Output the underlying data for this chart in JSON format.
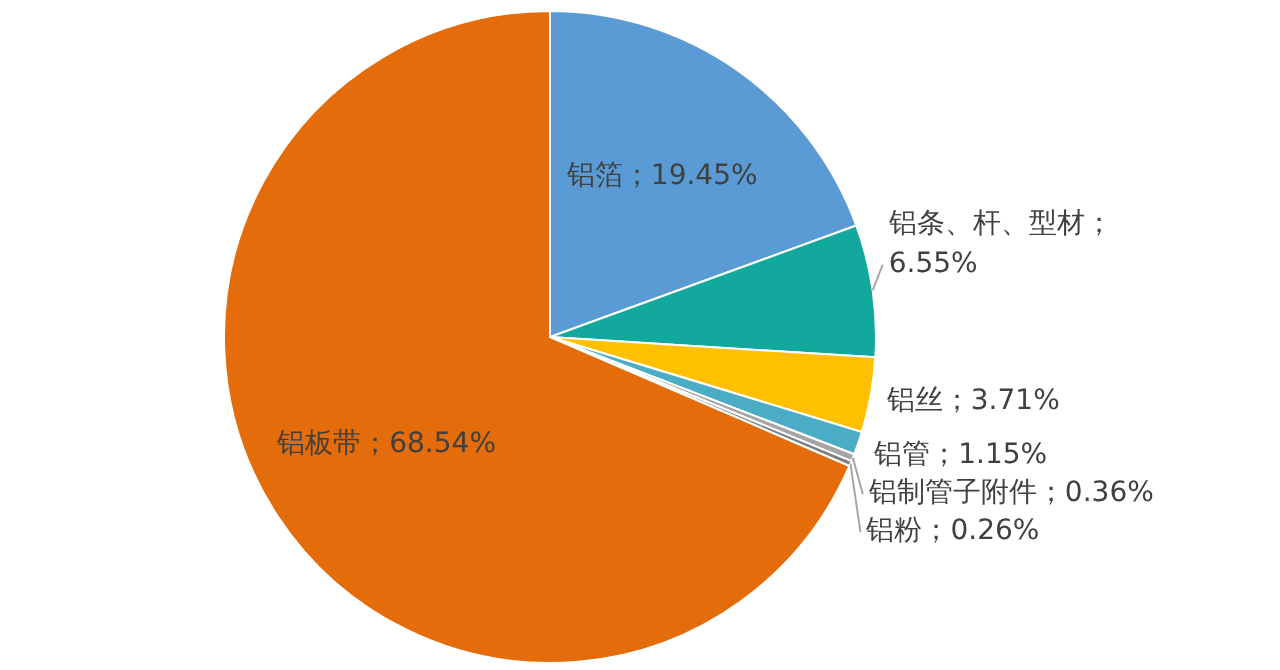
{
  "chart_data": {
    "type": "pie",
    "categories": [
      "铝箔",
      "铝条、杆、型材",
      "铝丝",
      "铝管",
      "铝制管子附件",
      "铝粉",
      "铝板带"
    ],
    "values": [
      19.45,
      6.55,
      3.71,
      1.15,
      0.36,
      0.26,
      68.54
    ],
    "colors": [
      "#5b9bd5",
      "#13a89e",
      "#ffc000",
      "#4bacc6",
      "#a5a5a5",
      "#7f7f7f",
      "#e46c0a"
    ],
    "value_labels": [
      "；19.45%",
      "；6.55%",
      "；3.71%",
      "；1.15%",
      "；0.36%",
      "；0.26%",
      "；68.54%"
    ],
    "legend": false
  }
}
